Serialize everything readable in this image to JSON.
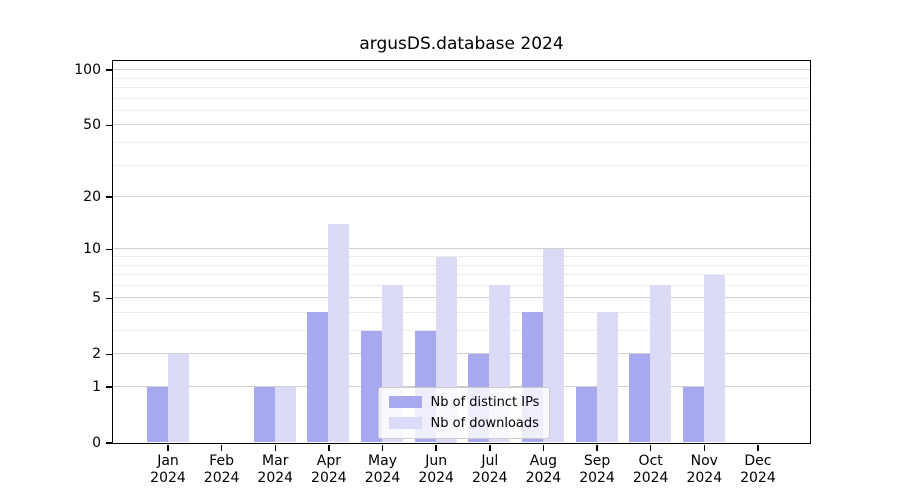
{
  "title": "argusDS.database 2024",
  "colors": {
    "distinct_ips": "#a8a8ee",
    "downloads": "#dbdbf8",
    "grid_major": "#d0d0d0",
    "grid_minor": "#ececec",
    "spine": "#000000",
    "legend_border": "#cccccc"
  },
  "legend": {
    "items": [
      {
        "label": "Nb of distinct IPs",
        "series": "distinct_ips"
      },
      {
        "label": "Nb of downloads",
        "series": "downloads"
      }
    ]
  },
  "chart_data": {
    "type": "bar",
    "title": "argusDS.database 2024",
    "scale": "log10(1+x)",
    "categories": [
      "Jan",
      "Feb",
      "Mar",
      "Apr",
      "May",
      "Jun",
      "Jul",
      "Aug",
      "Sep",
      "Oct",
      "Nov",
      "Dec"
    ],
    "year_label": "2024",
    "series": [
      {
        "name": "Nb of distinct IPs",
        "color": "#a8a8ee",
        "values": [
          1,
          0,
          1,
          4,
          3,
          3,
          2,
          4,
          1,
          2,
          1,
          0
        ]
      },
      {
        "name": "Nb of downloads",
        "color": "#dbdbf8",
        "values": [
          2,
          0,
          1,
          14,
          6,
          9,
          6,
          10,
          4,
          6,
          7,
          0
        ]
      }
    ],
    "xlabel": "",
    "ylabel": "",
    "y_major_ticks": [
      0,
      1,
      2,
      5,
      10,
      20,
      50,
      100
    ],
    "y_minor_ticks": [
      3,
      4,
      6,
      7,
      8,
      9,
      30,
      40,
      60,
      70,
      80,
      90
    ],
    "ylim": [
      0,
      112
    ],
    "grid": true,
    "legend_position": "lower-center"
  }
}
